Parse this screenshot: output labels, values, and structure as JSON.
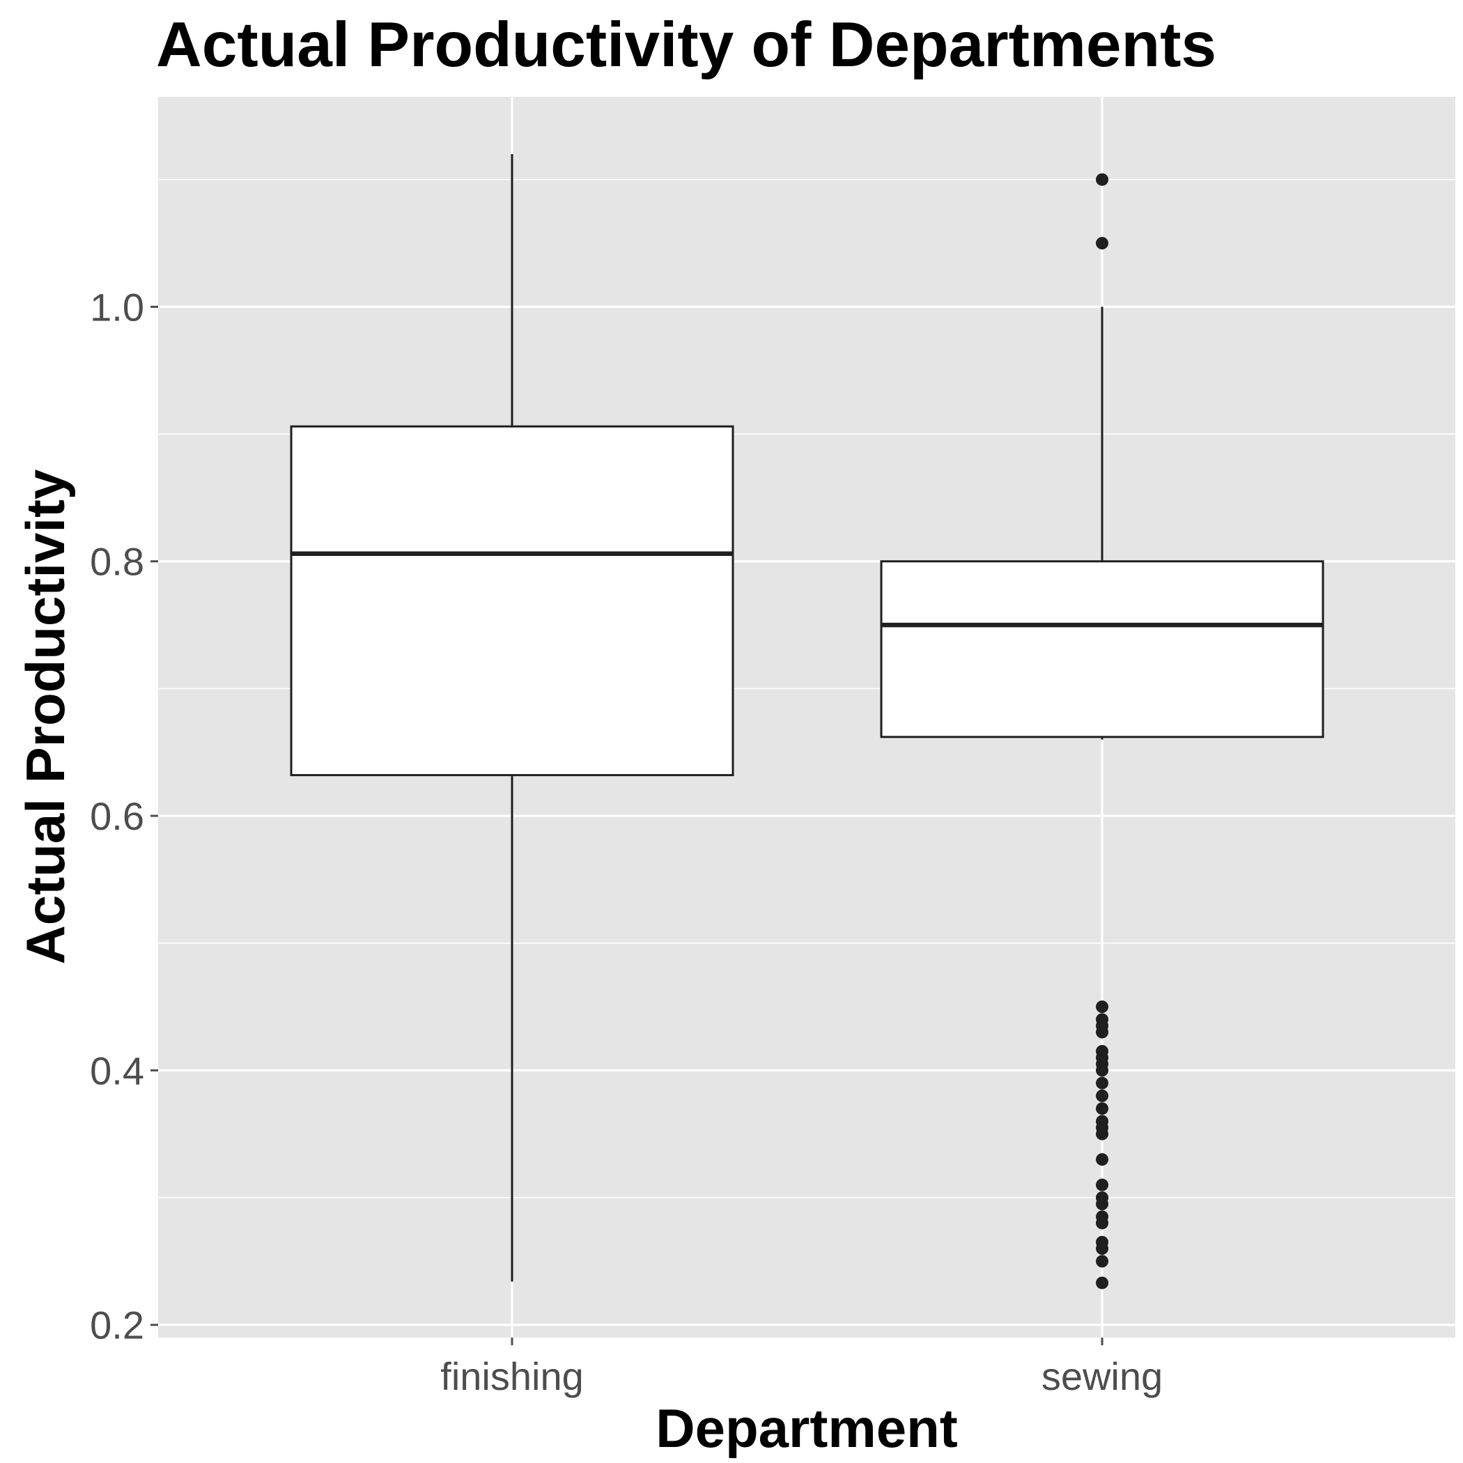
{
  "chart_data": {
    "type": "box",
    "title": "Actual Productivity of Departments",
    "xlabel": "Department",
    "ylabel": "Actual Productivity",
    "ylim": [
      0.19,
      1.165
    ],
    "y_ticks": [
      0.2,
      0.4,
      0.6,
      0.8,
      1.0
    ],
    "y_tick_labels": [
      "0.2",
      "0.4",
      "0.6",
      "0.8",
      "1.0"
    ],
    "grid": true,
    "categories": [
      "finishing",
      "sewing"
    ],
    "boxes": [
      {
        "name": "finishing",
        "whisker_low": 0.234,
        "q1": 0.632,
        "median": 0.806,
        "q3": 0.906,
        "whisker_high": 1.12,
        "outliers": []
      },
      {
        "name": "sewing",
        "whisker_low": 0.66,
        "q1": 0.662,
        "median": 0.75,
        "q3": 0.8,
        "whisker_high": 1.0,
        "outliers": [
          1.1,
          1.05,
          0.45,
          0.44,
          0.435,
          0.43,
          0.415,
          0.41,
          0.405,
          0.4,
          0.39,
          0.38,
          0.37,
          0.36,
          0.355,
          0.35,
          0.33,
          0.31,
          0.3,
          0.295,
          0.285,
          0.28,
          0.265,
          0.26,
          0.25,
          0.233
        ]
      }
    ],
    "colors": {
      "panel": "#e5e5e5",
      "grid": "#ffffff",
      "box_fill": "#ffffff",
      "box_line": "#1f1f1f",
      "tick": "#4d4d4d"
    }
  }
}
